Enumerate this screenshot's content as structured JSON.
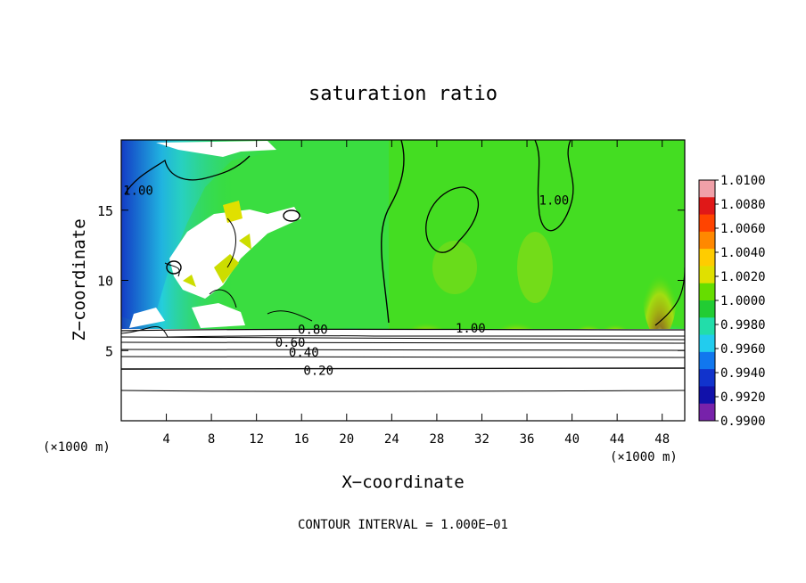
{
  "chart_data": {
    "type": "heatmap",
    "title": "saturation ratio",
    "xlabel": "X−coordinate",
    "ylabel": "Z−coordinate",
    "x_unit_left": "(×1000 m)",
    "x_unit_right": "(×1000 m)",
    "xlim": [
      0,
      50
    ],
    "ylim": [
      0,
      20
    ],
    "x_ticks": [
      4,
      8,
      12,
      16,
      20,
      24,
      28,
      32,
      36,
      40,
      44,
      48
    ],
    "y_ticks": [
      5,
      10,
      15
    ],
    "colorbar": {
      "labels": [
        "1.0100",
        "1.0080",
        "1.0060",
        "1.0040",
        "1.0020",
        "1.0000",
        "0.9980",
        "0.9960",
        "0.9940",
        "0.9920",
        "0.9900"
      ],
      "colors": [
        "#f0a0a8",
        "#e01818",
        "#ff4400",
        "#ff8800",
        "#ffcc00",
        "#e0e000",
        "#66dd00",
        "#22cc33",
        "#22ddaa",
        "#22ccee",
        "#1177ee",
        "#1133cc",
        "#1111aa",
        "#7722aa"
      ]
    },
    "contour_labels": [
      {
        "text": "1.00",
        "x": 1.5,
        "y": 16.4
      },
      {
        "text": "1.00",
        "x": 31,
        "y": 6.6
      },
      {
        "text": "1.00",
        "x": 38.4,
        "y": 15.7
      },
      {
        "text": "0.80",
        "x": 17.0,
        "y": 6.5
      },
      {
        "text": "0.60",
        "x": 15.0,
        "y": 5.6
      },
      {
        "text": "0.40",
        "x": 16.2,
        "y": 4.9
      },
      {
        "text": "0.20",
        "x": 17.5,
        "y": 3.6
      }
    ],
    "contour_interval_label": "CONTOUR INTERVAL = 1.000E−01"
  }
}
